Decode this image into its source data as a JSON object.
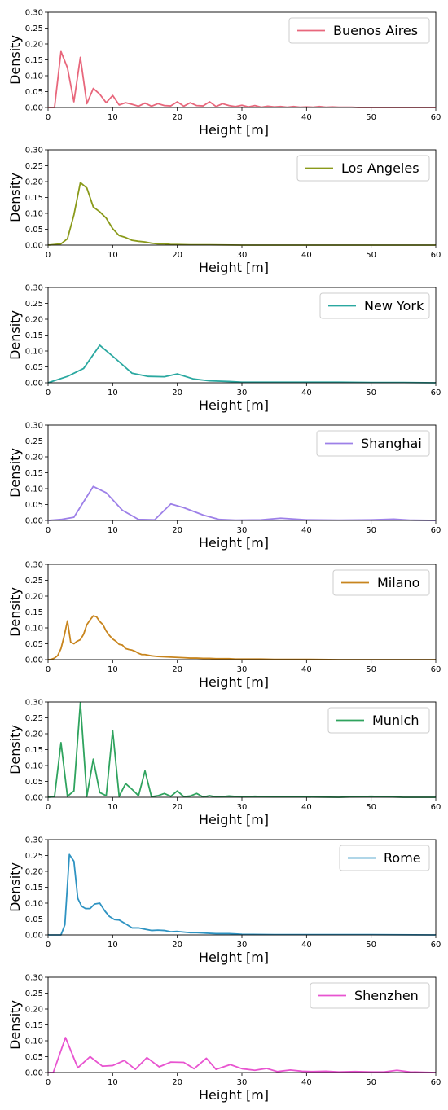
{
  "chart_data": [
    {
      "type": "line",
      "series": [
        {
          "name": "Buenos Aires",
          "color": "#e8677c",
          "x": [
            0,
            1,
            2,
            3,
            4,
            5,
            6,
            7,
            8,
            9,
            10,
            11,
            12,
            13,
            14,
            15,
            16,
            17,
            18,
            19,
            20,
            21,
            22,
            23,
            24,
            25,
            26,
            27,
            28,
            29,
            30,
            31,
            32,
            33,
            34,
            35,
            36,
            37,
            38,
            39,
            40,
            41,
            42,
            43,
            44,
            45,
            46,
            47,
            48,
            49,
            50,
            55,
            60
          ],
          "y": [
            0,
            0,
            0.176,
            0.125,
            0.018,
            0.158,
            0.012,
            0.06,
            0.042,
            0.015,
            0.038,
            0.008,
            0.015,
            0.01,
            0.004,
            0.014,
            0.004,
            0.012,
            0.006,
            0.005,
            0.018,
            0.004,
            0.015,
            0.006,
            0.005,
            0.018,
            0.003,
            0.012,
            0.006,
            0.003,
            0.007,
            0.002,
            0.006,
            0.001,
            0.004,
            0.002,
            0.003,
            0.001,
            0.003,
            0.001,
            0.002,
            0.001,
            0.003,
            0.001,
            0.002,
            0.001,
            0.001,
            0.001,
            0,
            0,
            0,
            0,
            0
          ]
        }
      ],
      "xlabel": "Height [m]",
      "ylabel": "Density",
      "xlim": [
        0,
        60
      ],
      "ylim": [
        0,
        0.3
      ],
      "xticks": [
        0,
        10,
        20,
        30,
        40,
        50,
        60
      ],
      "yticks": [
        0.0,
        0.05,
        0.1,
        0.15,
        0.2,
        0.25,
        0.3
      ],
      "legend_position": "top-right",
      "grid": false
    },
    {
      "type": "line",
      "series": [
        {
          "name": "Los Angeles",
          "color": "#8a9a1a",
          "x": [
            0,
            1,
            2,
            3,
            4,
            5,
            6,
            7,
            8,
            9,
            10,
            11,
            12,
            13,
            14,
            15,
            16,
            17,
            18,
            19,
            20,
            22,
            25,
            30,
            40,
            60
          ],
          "y": [
            0,
            0.002,
            0.004,
            0.02,
            0.095,
            0.197,
            0.18,
            0.12,
            0.105,
            0.085,
            0.052,
            0.03,
            0.024,
            0.015,
            0.012,
            0.01,
            0.006,
            0.004,
            0.004,
            0.002,
            0.002,
            0.001,
            0.001,
            0,
            0,
            0
          ]
        }
      ],
      "xlabel": "Height [m]",
      "ylabel": "Density",
      "xlim": [
        0,
        60
      ],
      "ylim": [
        0,
        0.3
      ],
      "xticks": [
        0,
        10,
        20,
        30,
        40,
        50,
        60
      ],
      "yticks": [
        0.0,
        0.05,
        0.1,
        0.15,
        0.2,
        0.25,
        0.3
      ],
      "legend_position": "top-right",
      "grid": false
    },
    {
      "type": "line",
      "series": [
        {
          "name": "New York",
          "color": "#2aa8a0",
          "x": [
            0,
            3,
            5.5,
            8,
            10.5,
            13,
            15.5,
            18,
            20,
            22.5,
            25,
            28,
            30,
            35,
            40,
            45,
            50,
            55,
            60
          ],
          "y": [
            0,
            0.02,
            0.045,
            0.118,
            0.075,
            0.03,
            0.02,
            0.019,
            0.028,
            0.012,
            0.006,
            0.004,
            0.002,
            0.002,
            0.002,
            0.002,
            0.001,
            0.001,
            0
          ]
        }
      ],
      "xlabel": "Height [m]",
      "ylabel": "Density",
      "xlim": [
        0,
        60
      ],
      "ylim": [
        0,
        0.3
      ],
      "xticks": [
        0,
        10,
        20,
        30,
        40,
        50,
        60
      ],
      "yticks": [
        0.0,
        0.05,
        0.1,
        0.15,
        0.2,
        0.25,
        0.3
      ],
      "legend_position": "top-right",
      "grid": false
    },
    {
      "type": "line",
      "series": [
        {
          "name": "Shanghai",
          "color": "#9d80e8",
          "x": [
            0,
            2,
            4,
            7,
            9,
            11.5,
            14,
            16.5,
            19,
            21,
            24,
            26.5,
            29,
            33,
            36,
            40,
            45,
            50,
            53.5,
            56,
            60
          ],
          "y": [
            0,
            0.003,
            0.01,
            0.107,
            0.087,
            0.032,
            0.003,
            0.002,
            0.052,
            0.04,
            0.017,
            0.003,
            0.001,
            0.002,
            0.007,
            0.002,
            0.001,
            0.002,
            0.004,
            0.001,
            0
          ]
        }
      ],
      "xlabel": "Height [m]",
      "ylabel": "Density",
      "xlim": [
        0,
        60
      ],
      "ylim": [
        0,
        0.3
      ],
      "xticks": [
        0,
        10,
        20,
        30,
        40,
        50,
        60
      ],
      "yticks": [
        0.0,
        0.05,
        0.1,
        0.15,
        0.2,
        0.25,
        0.3
      ],
      "legend_position": "top-right",
      "grid": false
    },
    {
      "type": "line",
      "series": [
        {
          "name": "Milano",
          "color": "#c8851e",
          "x": [
            0,
            0.5,
            1,
            1.5,
            2,
            2.5,
            3,
            3.5,
            4,
            4.5,
            5,
            5.5,
            6,
            6.5,
            7,
            7.5,
            8,
            8.5,
            9,
            9.5,
            10,
            10.5,
            11,
            11.5,
            12,
            12.5,
            13,
            13.5,
            14,
            14.5,
            15,
            16,
            17,
            18,
            19,
            20,
            21,
            22,
            23,
            24,
            25,
            26,
            27,
            28,
            29,
            30,
            31,
            32,
            33,
            35,
            40,
            45,
            50,
            60
          ],
          "y": [
            0,
            0.001,
            0.005,
            0.013,
            0.035,
            0.075,
            0.122,
            0.055,
            0.05,
            0.058,
            0.063,
            0.08,
            0.11,
            0.125,
            0.138,
            0.135,
            0.12,
            0.11,
            0.09,
            0.076,
            0.065,
            0.058,
            0.048,
            0.046,
            0.035,
            0.032,
            0.03,
            0.026,
            0.02,
            0.016,
            0.016,
            0.012,
            0.01,
            0.009,
            0.008,
            0.007,
            0.006,
            0.005,
            0.005,
            0.004,
            0.004,
            0.003,
            0.003,
            0.003,
            0.002,
            0.002,
            0.002,
            0.002,
            0.002,
            0.001,
            0.001,
            0,
            0,
            0
          ]
        }
      ],
      "xlabel": "Height [m]",
      "ylabel": "Density",
      "xlim": [
        0,
        60
      ],
      "ylim": [
        0,
        0.3
      ],
      "xticks": [
        0,
        10,
        20,
        30,
        40,
        50,
        60
      ],
      "yticks": [
        0.0,
        0.05,
        0.1,
        0.15,
        0.2,
        0.25,
        0.3
      ],
      "legend_position": "top-right",
      "grid": false
    },
    {
      "type": "line",
      "series": [
        {
          "name": "Munich",
          "color": "#2fa35e",
          "x": [
            0,
            1,
            2,
            3,
            4,
            5,
            6,
            7,
            8,
            9,
            10,
            11,
            12,
            13,
            14,
            15,
            16,
            17,
            18,
            19,
            20,
            21,
            22,
            23,
            24,
            25,
            26,
            27,
            28,
            30,
            32,
            35,
            40,
            45,
            50,
            55,
            60
          ],
          "y": [
            0,
            0.002,
            0.172,
            0.003,
            0.02,
            0.298,
            0.003,
            0.12,
            0.015,
            0.005,
            0.21,
            0.003,
            0.043,
            0.025,
            0.005,
            0.083,
            0.002,
            0.005,
            0.012,
            0.003,
            0.02,
            0.002,
            0.004,
            0.012,
            0.001,
            0.005,
            0.001,
            0.002,
            0.004,
            0.001,
            0.003,
            0.001,
            0.001,
            0,
            0.003,
            0,
            0
          ]
        }
      ],
      "xlabel": "Height [m]",
      "ylabel": "Density",
      "xlim": [
        0,
        60
      ],
      "ylim": [
        0,
        0.3
      ],
      "xticks": [
        0,
        10,
        20,
        30,
        40,
        50,
        60
      ],
      "yticks": [
        0.0,
        0.05,
        0.1,
        0.15,
        0.2,
        0.25,
        0.3
      ],
      "legend_position": "top-right",
      "grid": false
    },
    {
      "type": "line",
      "series": [
        {
          "name": "Rome",
          "color": "#2e93c2",
          "x": [
            0,
            2,
            2.6,
            3.3,
            4,
            4.6,
            5.2,
            5.8,
            6.5,
            7.2,
            8,
            8.8,
            9.5,
            10.3,
            11,
            12,
            13,
            14,
            15,
            16,
            17,
            18,
            19,
            20,
            21,
            22,
            23,
            24,
            25,
            26,
            27,
            28,
            29,
            30,
            35,
            40,
            50,
            60
          ],
          "y": [
            0,
            0,
            0.032,
            0.253,
            0.232,
            0.115,
            0.09,
            0.083,
            0.083,
            0.097,
            0.1,
            0.075,
            0.058,
            0.048,
            0.047,
            0.035,
            0.022,
            0.022,
            0.018,
            0.014,
            0.015,
            0.014,
            0.01,
            0.011,
            0.009,
            0.007,
            0.007,
            0.006,
            0.005,
            0.004,
            0.004,
            0.004,
            0.003,
            0.002,
            0.001,
            0.001,
            0.001,
            0
          ]
        }
      ],
      "xlabel": "Height [m]",
      "ylabel": "Density",
      "xlim": [
        0,
        60
      ],
      "ylim": [
        0,
        0.3
      ],
      "xticks": [
        0,
        10,
        20,
        30,
        40,
        50,
        60
      ],
      "yticks": [
        0.0,
        0.05,
        0.1,
        0.15,
        0.2,
        0.25,
        0.3
      ],
      "legend_position": "top-right",
      "grid": false
    },
    {
      "type": "line",
      "series": [
        {
          "name": "Shenzhen",
          "color": "#e854d0",
          "x": [
            0,
            0.8,
            2.7,
            4.6,
            6.5,
            8.4,
            10,
            11.8,
            13.5,
            15.3,
            17.2,
            19,
            21,
            22.6,
            24.5,
            26,
            28.2,
            30,
            32,
            33.8,
            35.5,
            37.5,
            39.3,
            41,
            43,
            45,
            47.5,
            50,
            52,
            54,
            56,
            58,
            60
          ],
          "y": [
            0,
            0,
            0.11,
            0.015,
            0.05,
            0.02,
            0.022,
            0.038,
            0.01,
            0.047,
            0.018,
            0.033,
            0.032,
            0.012,
            0.045,
            0.01,
            0.025,
            0.012,
            0.007,
            0.013,
            0.003,
            0.008,
            0.004,
            0.003,
            0.004,
            0.002,
            0.003,
            0.002,
            0.002,
            0.007,
            0.002,
            0.001,
            0
          ]
        }
      ],
      "xlabel": "Height [m]",
      "ylabel": "Density",
      "xlim": [
        0,
        60
      ],
      "ylim": [
        0,
        0.3
      ],
      "xticks": [
        0,
        10,
        20,
        30,
        40,
        50,
        60
      ],
      "yticks": [
        0.0,
        0.05,
        0.1,
        0.15,
        0.2,
        0.25,
        0.3
      ],
      "legend_position": "top-right",
      "grid": false
    }
  ]
}
